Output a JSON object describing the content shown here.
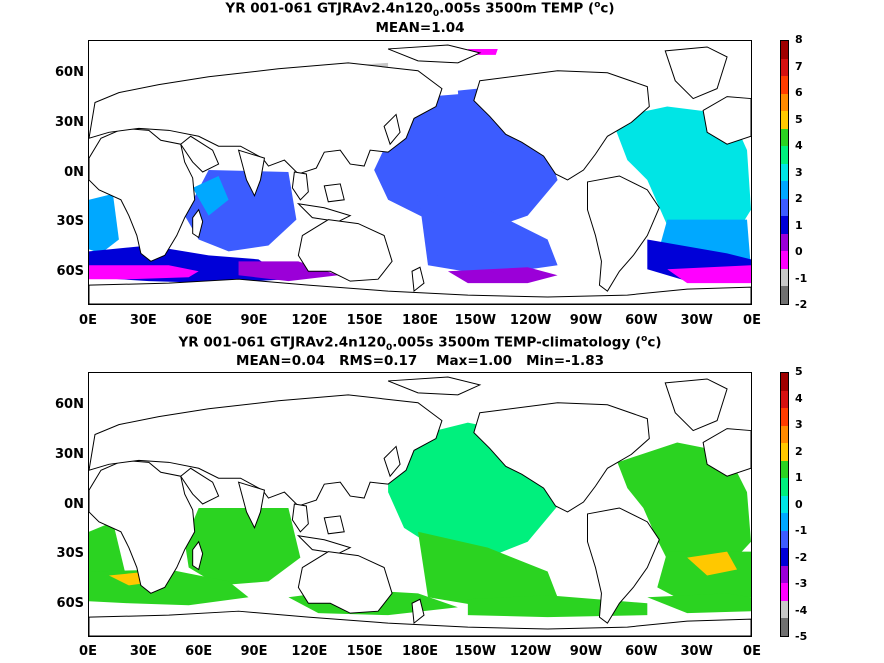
{
  "panels": [
    {
      "title_line1": "YR 001-061 GTJRAv2.4n120",
      "title_sub": "0",
      "title_line1_rest": ".005s 3500m TEMP (",
      "title_sup": "o",
      "title_line1_end": "c)",
      "title_line2": "MEAN=1.04",
      "y_ticks": [
        "60N",
        "30N",
        "0N",
        "30S",
        "60S"
      ],
      "x_ticks": [
        "0E",
        "30E",
        "60E",
        "90E",
        "120E",
        "150E",
        "180E",
        "150W",
        "120W",
        "90W",
        "60W",
        "30W",
        "0E"
      ],
      "colorbar": {
        "labels": [
          "8",
          "7",
          "6",
          "5",
          "4",
          "3",
          "2",
          "1",
          "0",
          "-1",
          "-2"
        ],
        "colors": [
          "#a00000",
          "#d51010",
          "#ff3c00",
          "#ff8a00",
          "#ffc800",
          "#2bd321",
          "#00f07d",
          "#00e5e5",
          "#00a8ff",
          "#3c5cff",
          "#0000d8",
          "#9b00d8",
          "#ff00ff",
          "#c8c8c8",
          "#707070"
        ]
      },
      "field": "absolute"
    },
    {
      "title_line1": "YR 001-061 GTJRAv2.4n120",
      "title_sub": "0",
      "title_line1_rest": ".005s 3500m TEMP-climatology (",
      "title_sup": "o",
      "title_line1_end": "c)",
      "title_line2": "MEAN=0.04   RMS=0.17    Max=1.00   Min=-1.83",
      "y_ticks": [
        "60N",
        "30N",
        "0N",
        "30S",
        "60S"
      ],
      "x_ticks": [
        "0E",
        "30E",
        "60E",
        "90E",
        "120E",
        "150E",
        "180E",
        "150W",
        "120W",
        "90W",
        "60W",
        "30W",
        "0E"
      ],
      "colorbar": {
        "labels": [
          "5",
          "4",
          "3",
          "2",
          "1",
          "0",
          "-1",
          "-2",
          "-3",
          "-4",
          "-5"
        ],
        "colors": [
          "#a00000",
          "#d51010",
          "#ff3c00",
          "#ff8a00",
          "#ffc800",
          "#2bd321",
          "#00f07d",
          "#00e5e5",
          "#00a8ff",
          "#3c5cff",
          "#0000d8",
          "#9b00d8",
          "#ff00ff",
          "#c8c8c8",
          "#707070"
        ]
      },
      "field": "anomaly"
    }
  ]
}
